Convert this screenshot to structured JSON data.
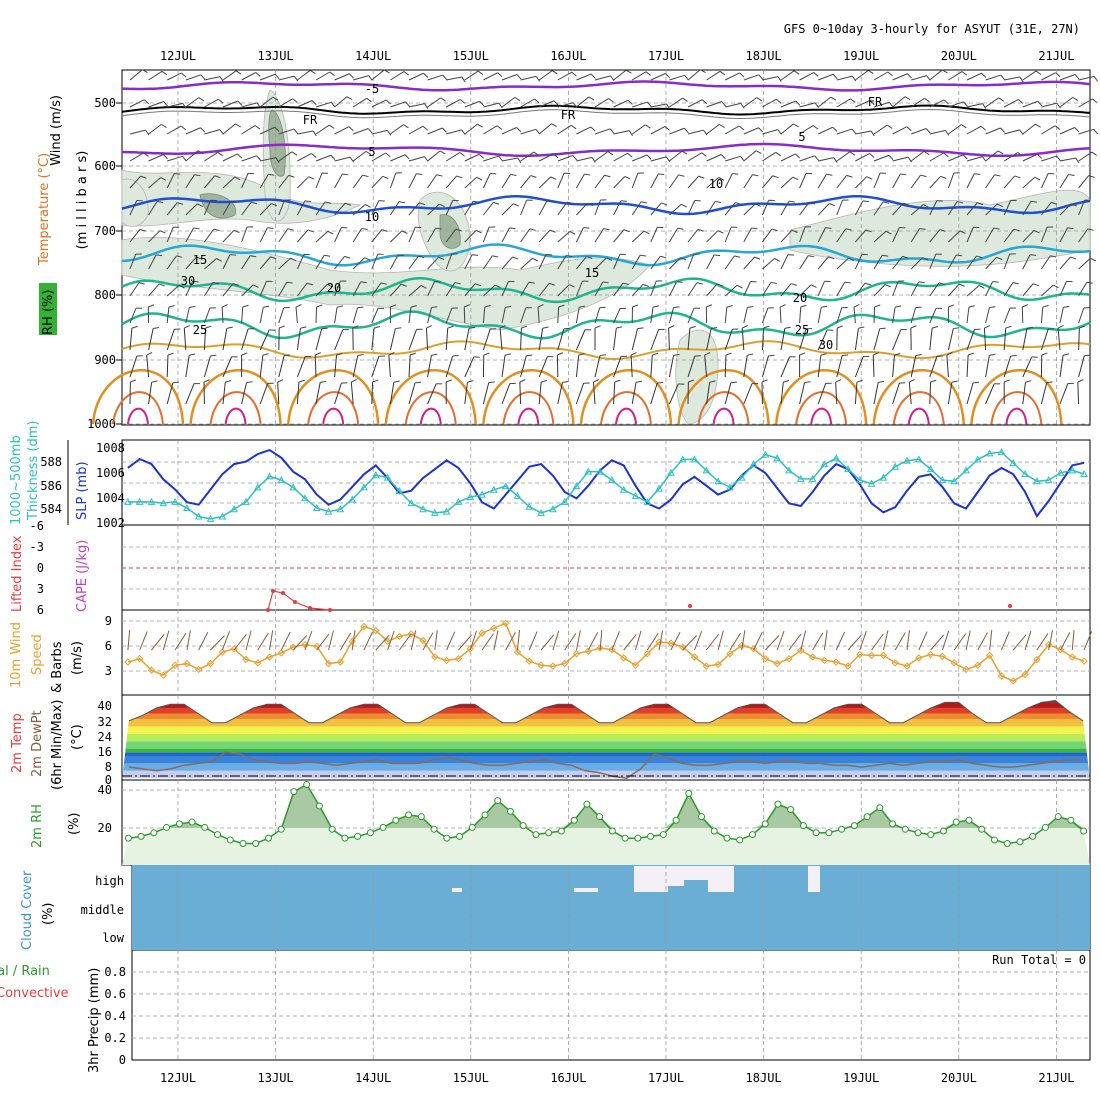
{
  "title": "GFS 0~10day 3-hourly for ASYUT (31E, 27N)",
  "days": [
    "12JUL",
    "13JUL",
    "14JUL",
    "15JUL",
    "16JUL",
    "17JUL",
    "18JUL",
    "19JUL",
    "20JUL",
    "21JUL"
  ],
  "colors": {
    "purple": "#8a2bc8",
    "black": "#000000",
    "blue": "#1f4fd6",
    "cyan": "#27a7d6",
    "teal": "#1fb58f",
    "orange": "#e09020",
    "slp": "#1a35c8",
    "thick": "#2ec0c0",
    "cape": "#e04040",
    "wind": "#e8a030",
    "barb": "#8a5a3c",
    "rh": "#2a9a2a",
    "cloud": "#6aaed6"
  },
  "panels": {
    "upper": {
      "y_labels": [
        "500",
        "600",
        "700",
        "800",
        "900",
        "1000"
      ],
      "ylabel_wind": "Wind (m/s)",
      "ylabel_temp": "Temperature (°C)",
      "ylabel_rh": "RH (%)",
      "ylabel_mb": "(m i l l i b a r s)",
      "contour_labels": [
        "-5",
        "FR",
        "FR",
        "FR",
        "5",
        "5",
        "10",
        "10",
        "15",
        "15",
        "20",
        "20",
        "25",
        "25",
        "30",
        "30"
      ]
    },
    "slp": {
      "ylabel1": "1000~500mb",
      "ylabel2": "Thickness (dm)",
      "ylabel3": "SLP (mb)",
      "left_ticks": [
        "588",
        "586",
        "584"
      ],
      "right_ticks": [
        "1008",
        "1006",
        "1004",
        "1002"
      ]
    },
    "cape": {
      "ylabel1": "Lifted Index",
      "ylabel2": "CAPE (J/kg)",
      "ticks": [
        "-6",
        "-3",
        "0",
        "3",
        "6"
      ]
    },
    "wind10": {
      "ylabel1": "10m Wind",
      "ylabel2": "Speed",
      "ylabel3": "& Barbs",
      "ylabel4": "(m/s)",
      "ticks": [
        "9",
        "6",
        "3"
      ]
    },
    "temp": {
      "ylabel1": "2m Temp",
      "ylabel2": "2m DewPt",
      "ylabel3": "(6hr Min/Max)",
      "ylabel4": "(°C)",
      "ticks": [
        "40",
        "32",
        "24",
        "16",
        "8",
        "0"
      ]
    },
    "rh": {
      "ylabel1": "2m RH",
      "ylabel2": "(%)",
      "ticks": [
        "40",
        "20"
      ]
    },
    "cloud": {
      "ylabel1": "Cloud Cover",
      "ylabel2": "(%)",
      "levels": [
        "high",
        "middle",
        "low"
      ]
    },
    "precip": {
      "ylabel1": "tal / Rain",
      "ylabel2": "Convective",
      "ylabel3": "3hr Precip (mm)",
      "run_total": "Run Total = 0",
      "ticks": [
        "0.8",
        "0.6",
        "0.4",
        "0.2",
        "0"
      ]
    }
  },
  "chart_data": [
    {
      "type": "line",
      "title": "GFS 0~10day 3-hourly for ASYUT (31E, 27N)",
      "series": [
        {
          "name": "SLP (mb)",
          "values": [
            1006.5,
            1007.2,
            1006.8,
            1005.6,
            1004.8,
            1003.8,
            1003.6,
            1004.8,
            1006.0,
            1006.8,
            1007.0,
            1007.6,
            1007.9,
            1007.3,
            1006.2,
            1005.6,
            1004.4,
            1003.6,
            1004.0,
            1005.0,
            1006.0,
            1006.7,
            1005.7,
            1004.5,
            1004.7,
            1005.7,
            1006.4,
            1007.1,
            1006.5,
            1005.3,
            1003.8,
            1003.3,
            1004.4,
            1005.5,
            1006.6,
            1006.8,
            1005.9,
            1004.6,
            1004.1,
            1005.1,
            1006.3,
            1007.1,
            1006.7,
            1005.1,
            1003.7,
            1003.3,
            1004.0,
            1005.2,
            1005.8,
            1005.1,
            1004.4,
            1004.8,
            1005.9,
            1006.7,
            1006.1,
            1004.9,
            1003.7,
            1003.5,
            1004.6,
            1005.9,
            1006.8,
            1006.4,
            1005.2,
            1003.7,
            1003.0,
            1003.4,
            1004.7,
            1005.8,
            1006.0,
            1005.0,
            1003.7,
            1003.3,
            1004.6,
            1005.9,
            1006.5,
            1006.0,
            1004.6,
            1002.7,
            1003.9,
            1005.3,
            1006.7,
            1006.9
          ]
        },
        {
          "name": "1000-500mb Thickness (dm)",
          "values": [
            584.1,
            584.1,
            584.1,
            584.0,
            584.1,
            583.6,
            582.9,
            582.7,
            582.9,
            583.5,
            584.1,
            585.3,
            586.2,
            585.9,
            585.3,
            584.4,
            583.6,
            583.3,
            583.5,
            584.3,
            585.3,
            586.3,
            586.1,
            585.0,
            584.0,
            583.5,
            583.2,
            583.3,
            584.1,
            584.5,
            584.7,
            585.1,
            585.4,
            584.6,
            583.7,
            583.2,
            583.5,
            584.1,
            585.4,
            586.6,
            586.6,
            585.9,
            585.1,
            584.6,
            584.1,
            585.2,
            586.5,
            587.6,
            587.6,
            586.7,
            585.8,
            585.3,
            586.1,
            587.2,
            588.0,
            587.7,
            586.7,
            586.0,
            586.0,
            587.2,
            587.7,
            586.8,
            585.9,
            585.6,
            586.1,
            587.0,
            587.5,
            587.6,
            586.8,
            585.9,
            585.8,
            586.7,
            587.6,
            588.1,
            588.2,
            587.3,
            586.4,
            585.8,
            585.9,
            586.5,
            586.7,
            586.4
          ]
        }
      ]
    },
    {
      "type": "line",
      "series": [
        {
          "name": "10m Wind Speed (m/s)",
          "values": [
            4.0,
            4.4,
            3.0,
            2.4,
            3.6,
            3.8,
            3.1,
            3.8,
            5.2,
            5.6,
            4.3,
            3.9,
            4.6,
            5.1,
            5.8,
            6.1,
            5.9,
            3.8,
            4.0,
            6.5,
            8.3,
            7.8,
            6.5,
            7.1,
            7.4,
            6.6,
            4.6,
            4.2,
            4.4,
            5.6,
            7.5,
            8.1,
            8.7,
            5.2,
            4.1,
            3.6,
            3.5,
            3.8,
            5.0,
            5.3,
            5.7,
            5.5,
            4.5,
            3.6,
            5.0,
            6.4,
            6.3,
            5.8,
            4.6,
            3.5,
            3.7,
            5.0,
            6.0,
            5.6,
            4.4,
            3.8,
            4.4,
            5.4,
            4.6,
            4.2,
            4.0,
            3.5,
            4.9,
            4.8,
            4.8,
            3.9,
            3.5,
            4.5,
            4.9,
            4.7,
            3.9,
            3.1,
            3.6,
            4.8,
            2.3,
            1.7,
            2.5,
            4.3,
            6.1,
            5.5,
            4.6,
            4.1
          ]
        }
      ]
    },
    {
      "type": "area",
      "series": [
        {
          "name": "2m RH (%)",
          "values": [
            12,
            13,
            15,
            18,
            20,
            21,
            18,
            14,
            11,
            9,
            9,
            12,
            17,
            38,
            42,
            30,
            17,
            12,
            13,
            15,
            18,
            22,
            25,
            24,
            17,
            12,
            13,
            18,
            25,
            33,
            27,
            19,
            14,
            15,
            16,
            22,
            31,
            24,
            16,
            12,
            12,
            13,
            14,
            22,
            37,
            24,
            16,
            12,
            11,
            14,
            20,
            31,
            28,
            19,
            15,
            15,
            17,
            19,
            24,
            29,
            20,
            17,
            15,
            14,
            16,
            21,
            22,
            17,
            11,
            9,
            10,
            13,
            18,
            24,
            22,
            16
          ]
        }
      ]
    },
    {
      "type": "line",
      "series": [
        {
          "name": "2m Temp (°C)",
          "values": [
            31,
            34,
            38,
            40,
            40,
            35,
            30,
            30,
            34,
            38,
            40,
            40,
            35,
            30,
            30,
            34,
            38,
            40,
            40,
            35,
            30,
            30,
            34,
            38,
            40,
            40,
            35,
            30,
            30,
            34,
            38,
            40,
            40,
            35,
            30,
            30,
            34,
            38,
            40,
            40,
            35,
            30,
            30,
            34,
            38,
            40,
            40,
            35,
            30,
            30,
            34,
            38,
            40,
            40,
            35,
            30,
            30,
            34,
            38,
            41,
            41,
            35,
            30,
            30,
            34,
            38,
            41,
            42,
            36,
            31
          ]
        },
        {
          "name": "2m DewPt (°C)",
          "values": [
            6,
            5,
            4,
            5,
            7,
            8,
            9,
            14,
            13,
            10,
            9,
            8,
            8,
            9,
            8,
            7,
            8,
            9,
            10,
            8,
            8,
            8,
            10,
            11,
            10,
            8,
            7,
            7,
            8,
            9,
            10,
            8,
            7,
            4,
            3,
            1,
            0,
            5,
            13,
            11,
            8,
            7,
            7,
            8,
            9,
            9,
            8,
            9,
            9,
            8,
            8,
            7,
            7,
            6,
            7,
            8,
            7,
            8,
            9,
            9,
            10,
            8,
            7,
            6,
            6,
            7,
            8,
            9,
            10,
            10
          ]
        }
      ]
    }
  ]
}
